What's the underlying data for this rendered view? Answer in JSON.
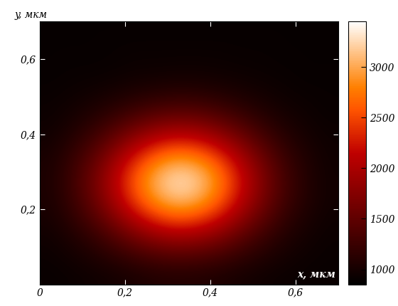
{
  "chart_data": {
    "type": "heatmap",
    "x_label": "x, мкм",
    "y_label": "y, мкм",
    "xlim": [
      0,
      0.7
    ],
    "ylim": [
      0,
      0.7
    ],
    "xticks": [
      0,
      {
        "value": 0.2,
        "label": "0,2"
      },
      {
        "value": 0.4,
        "label": "0,4"
      },
      {
        "value": 0.6,
        "label": "0,6"
      }
    ],
    "yticks": [
      {
        "value": 0.2,
        "label": "0,2"
      },
      {
        "value": 0.4,
        "label": "0,4"
      },
      {
        "value": 0.6,
        "label": "0,6"
      }
    ],
    "colorbar_range": [
      850,
      3450
    ],
    "colorbar_ticks": [
      1000,
      1500,
      2000,
      2500,
      3000
    ],
    "cells": [
      [
        910,
        930,
        960,
        990,
        1040,
        1080,
        1090,
        1080,
        1050,
        1000,
        960,
        930,
        920,
        910
      ],
      [
        930,
        980,
        1050,
        1150,
        1260,
        1360,
        1400,
        1370,
        1290,
        1170,
        1070,
        990,
        940,
        920
      ],
      [
        960,
        1050,
        1190,
        1390,
        1630,
        1820,
        1910,
        1850,
        1680,
        1440,
        1230,
        1070,
        980,
        930
      ],
      [
        1000,
        1150,
        1380,
        1710,
        2090,
        2410,
        2560,
        2460,
        2180,
        1790,
        1450,
        1180,
        1030,
        950
      ],
      [
        1030,
        1230,
        1540,
        1980,
        2490,
        2910,
        3110,
        2980,
        2600,
        2090,
        1630,
        1280,
        1080,
        970
      ],
      [
        1040,
        1260,
        1600,
        2080,
        2630,
        3080,
        3300,
        3160,
        2750,
        2200,
        1690,
        1310,
        1090,
        970
      ],
      [
        1030,
        1220,
        1510,
        1940,
        2420,
        2820,
        3010,
        2890,
        2530,
        2040,
        1600,
        1260,
        1070,
        960
      ],
      [
        990,
        1130,
        1340,
        1640,
        1990,
        2280,
        2410,
        2320,
        2060,
        1720,
        1400,
        1160,
        1020,
        950
      ],
      [
        950,
        1030,
        1160,
        1340,
        1540,
        1710,
        1790,
        1740,
        1580,
        1380,
        1190,
        1050,
        970,
        930
      ],
      [
        930,
        970,
        1030,
        1110,
        1210,
        1290,
        1330,
        1310,
        1230,
        1130,
        1040,
        970,
        940,
        910
      ],
      [
        910,
        930,
        950,
        980,
        1020,
        1050,
        1070,
        1060,
        1030,
        990,
        960,
        930,
        910,
        910
      ],
      [
        900,
        910,
        910,
        920,
        940,
        940,
        950,
        950,
        940,
        930,
        920,
        910,
        900,
        900
      ],
      [
        900,
        900,
        900,
        910,
        920,
        920,
        920,
        920,
        920,
        910,
        910,
        900,
        900,
        900
      ],
      [
        900,
        900,
        900,
        900,
        900,
        900,
        900,
        900,
        900,
        900,
        900,
        900,
        900,
        900
      ]
    ]
  }
}
